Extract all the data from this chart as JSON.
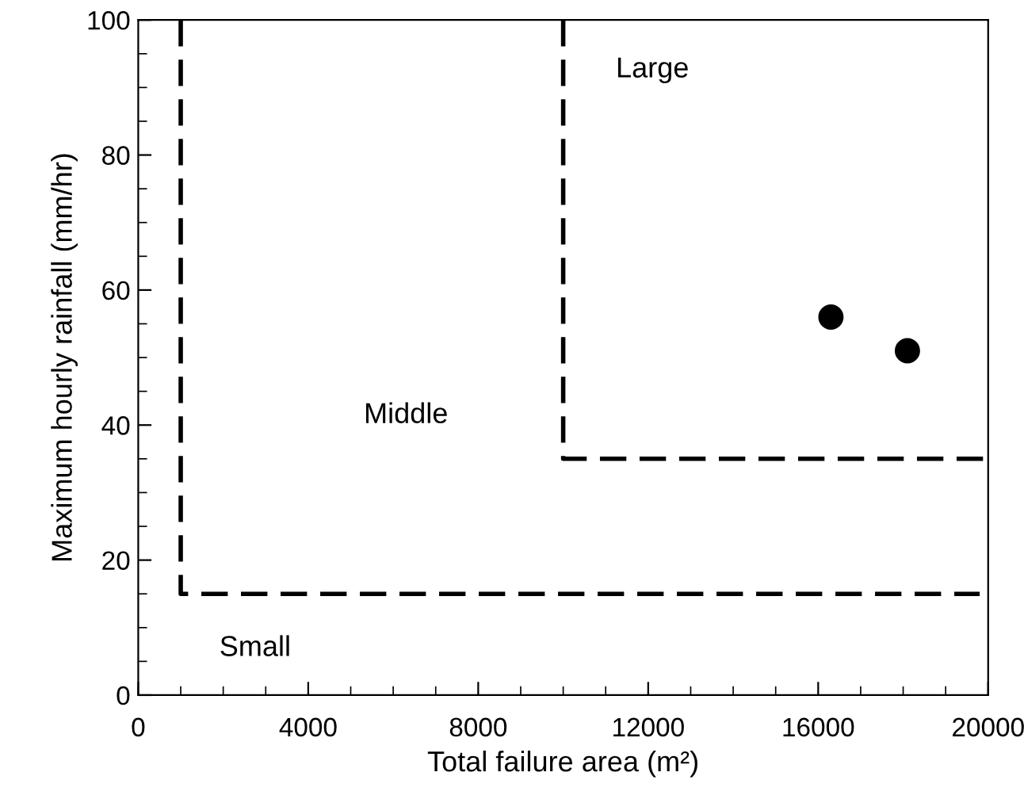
{
  "chart_data": {
    "type": "scatter",
    "xlabel": "Total failure area (m²)",
    "ylabel": "Maximum hourly rainfall (mm/hr)",
    "xlim": [
      0,
      20000
    ],
    "ylim": [
      0,
      100
    ],
    "xticks": [
      0,
      4000,
      8000,
      12000,
      16000,
      20000
    ],
    "yticks": [
      0,
      20,
      40,
      60,
      80,
      100
    ],
    "grid": false,
    "legend": false,
    "marker": "circle",
    "series": [
      {
        "color": "#000000",
        "x": [
          16300,
          18100
        ],
        "values": [
          56,
          51
        ]
      },
      {
        "type": "line",
        "line_style": "dashed",
        "marker": "none",
        "color": "#000000",
        "x": [
          1000,
          1000,
          19800
        ],
        "values": [
          100,
          15,
          15
        ]
      },
      {
        "type": "line",
        "line_style": "dashed",
        "marker": "none",
        "color": "#000000",
        "x": [
          10000,
          10000,
          20000
        ],
        "values": [
          100,
          35,
          35
        ]
      }
    ],
    "annotations": [
      "Large",
      "Middle",
      "Small"
    ]
  }
}
